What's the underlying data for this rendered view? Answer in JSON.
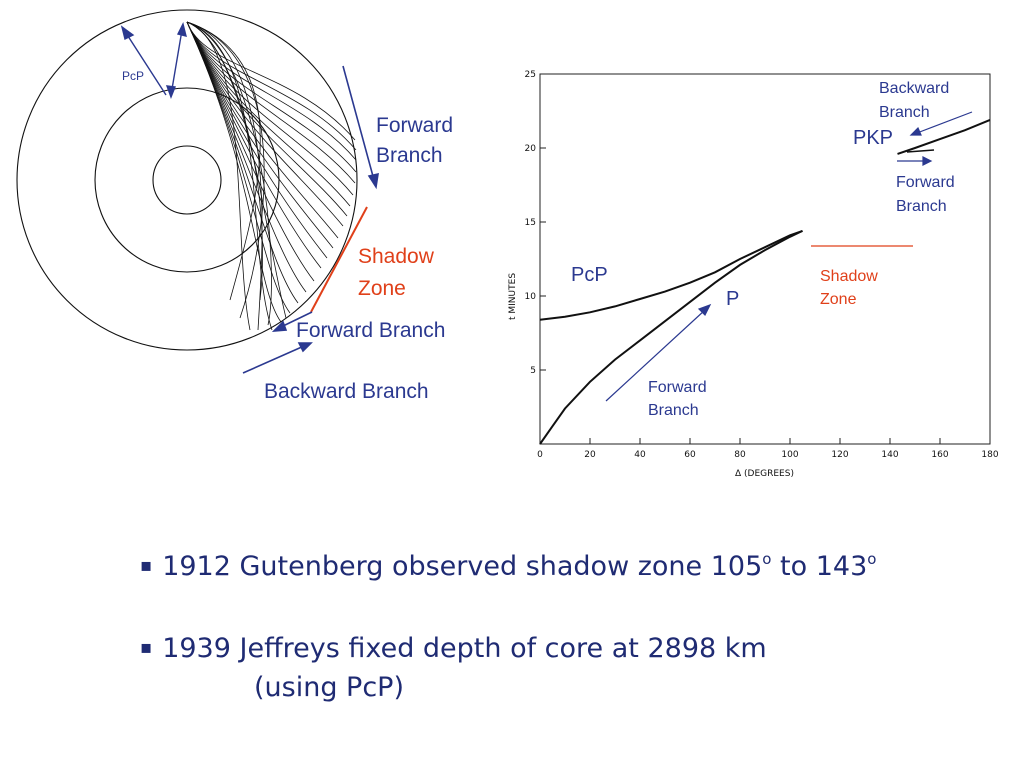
{
  "colors": {
    "label_blue": "#2b3990",
    "shadow_red": "#e0401a",
    "ink": "#111111"
  },
  "earth_diagram": {
    "pcp_label": "PcP",
    "forward_branch_top": [
      "Forward",
      "Branch"
    ],
    "shadow_zone": [
      "Shadow",
      "Zone"
    ],
    "forward_branch_bottom": "Forward Branch",
    "backward_branch": "Backward Branch"
  },
  "chart_data": {
    "type": "line",
    "title": "",
    "xlabel": "Δ (DEGREES)",
    "ylabel": "t MINUTES",
    "xlim": [
      0,
      180
    ],
    "ylim": [
      0,
      25
    ],
    "x_ticks": [
      0,
      20,
      40,
      60,
      80,
      100,
      120,
      140,
      160,
      180
    ],
    "y_ticks": [
      5,
      10,
      15,
      20,
      25
    ],
    "series": [
      {
        "name": "PcP",
        "x": [
          0,
          10,
          20,
          30,
          40,
          50,
          60,
          70,
          80,
          90,
          100,
          105
        ],
        "y": [
          8.4,
          8.6,
          8.9,
          9.3,
          9.8,
          10.3,
          10.9,
          11.6,
          12.5,
          13.3,
          14.1,
          14.4
        ]
      },
      {
        "name": "P",
        "x": [
          0,
          5,
          10,
          20,
          30,
          40,
          50,
          60,
          70,
          80,
          90,
          100,
          105
        ],
        "y": [
          0,
          1.2,
          2.4,
          4.2,
          5.7,
          7.0,
          8.3,
          9.6,
          10.9,
          12.1,
          13.1,
          14.0,
          14.4
        ]
      },
      {
        "name": "PKP",
        "x": [
          143,
          150,
          160,
          170,
          180
        ],
        "y": [
          19.6,
          20.0,
          20.6,
          21.2,
          21.9
        ]
      }
    ],
    "annotations": {
      "backward_branch": [
        "Backward",
        "Branch"
      ],
      "pkp": "PKP",
      "forward_branch_pkp": [
        "Forward",
        "Branch"
      ],
      "pcp": "PcP",
      "p": "P",
      "shadow_zone": [
        "Shadow",
        "Zone"
      ],
      "forward_branch_p": [
        "Forward",
        "Branch"
      ]
    },
    "shadow_zone_range": [
      105,
      143
    ]
  },
  "bullets": [
    {
      "mark": "▪",
      "pre": "1912 Gutenberg observed shadow zone 105",
      "sup1": "o",
      "mid": " to 143",
      "sup2": "o"
    },
    {
      "mark": "▪",
      "line1": "1939 Jeffreys fixed depth of core at 2898 km",
      "line2": "(using PcP)"
    }
  ]
}
